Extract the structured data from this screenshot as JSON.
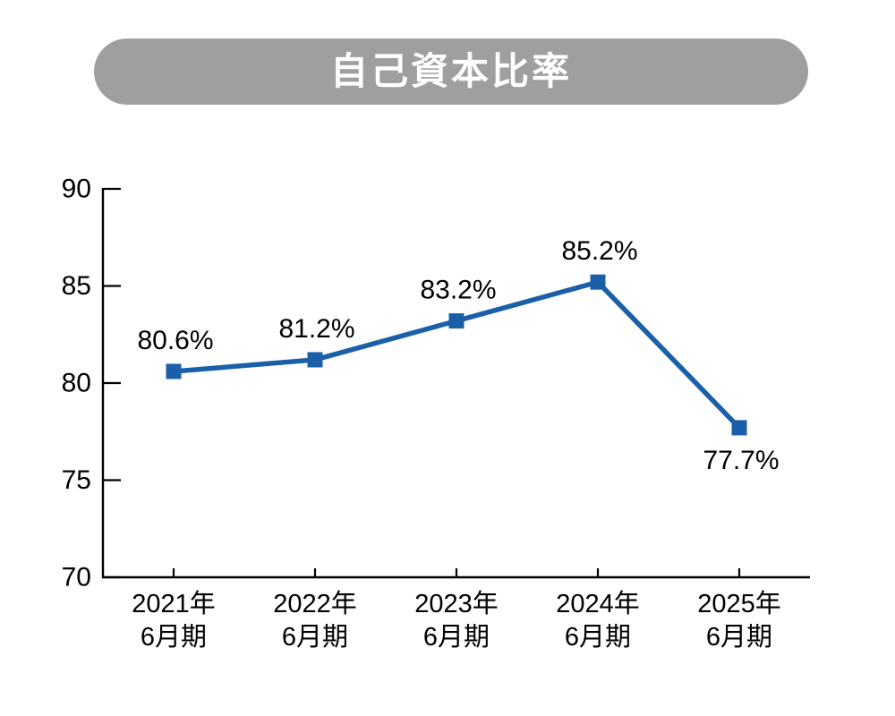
{
  "page": {
    "background_color": "#ffffff"
  },
  "header": {
    "title": "自己資本比率",
    "pill_color": "#9e9fa0",
    "title_color": "#ffffff"
  },
  "chart_data": {
    "type": "line",
    "title": "自己資本比率",
    "categories": [
      "2021年6月期",
      "2022年6月期",
      "2023年6月期",
      "2024年6月期",
      "2025年6月期"
    ],
    "category_lines": [
      [
        "2021年",
        "6月期"
      ],
      [
        "2022年",
        "6月期"
      ],
      [
        "2023年",
        "6月期"
      ],
      [
        "2024年",
        "6月期"
      ],
      [
        "2025年",
        "6月期"
      ]
    ],
    "values": [
      80.6,
      81.2,
      83.2,
      85.2,
      77.7
    ],
    "point_labels": [
      "80.6%",
      "81.2%",
      "83.2%",
      "85.2%",
      "77.7%"
    ],
    "point_label_positions": [
      "above",
      "above",
      "above",
      "above",
      "below"
    ],
    "unit": "%",
    "ylim": [
      70,
      90
    ],
    "yticks": [
      70,
      75,
      80,
      85,
      90
    ],
    "xlabel": "",
    "ylabel": "",
    "grid": false,
    "legend": "none",
    "marker": "square",
    "line_color": "#1a5fa8",
    "marker_color": "#1a5fa8",
    "axis_color": "#000000",
    "label_color": "#000000"
  }
}
